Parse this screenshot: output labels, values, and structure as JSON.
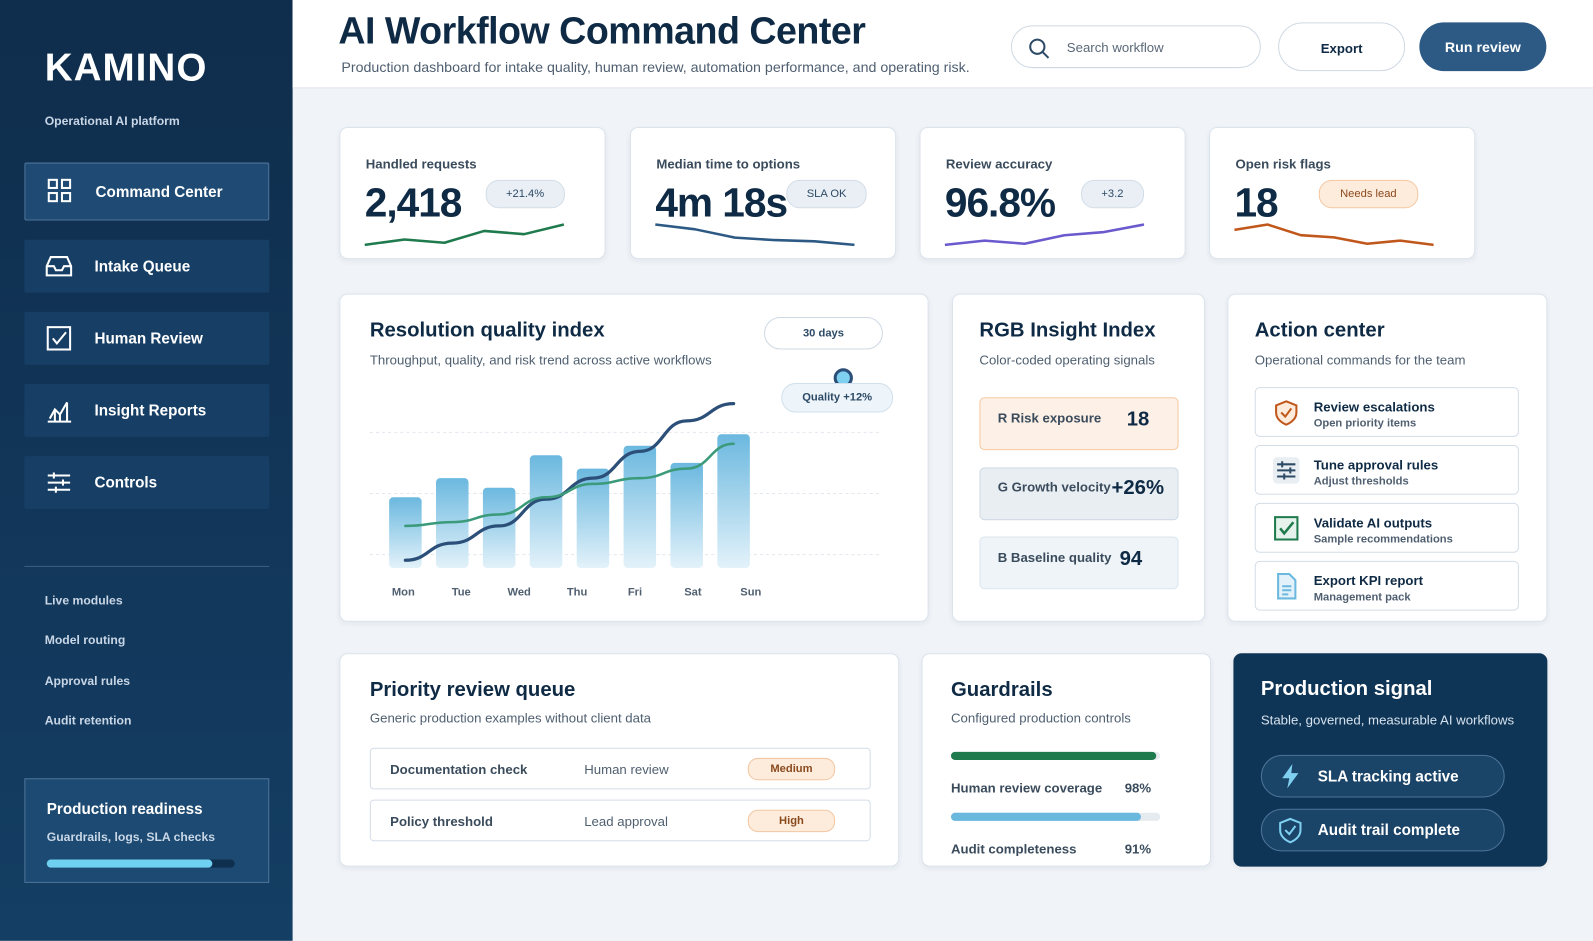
{
  "sidebar": {
    "brand": "KAMINO",
    "tagline": "Operational AI platform",
    "nav": [
      "Command Center",
      "Intake Queue",
      "Human Review",
      "Insight Reports",
      "Controls"
    ],
    "links": [
      "Live modules",
      "Model routing",
      "Approval rules",
      "Audit retention"
    ],
    "readiness": {
      "title": "Production readiness",
      "subtitle": "Guardrails, logs, SLA checks",
      "progress": 88
    }
  },
  "header": {
    "title": "AI Workflow Command Center",
    "subtitle": "Production dashboard for intake quality, human review, automation performance, and operating risk.",
    "search_placeholder": "Search workflow",
    "buttons": [
      "Export",
      "Run review"
    ]
  },
  "kpis": [
    {
      "label": "Handled requests",
      "value": "2,418",
      "badge": "+21.4%",
      "color": "#1f7a4d",
      "trend": [
        0,
        5,
        2,
        13,
        10,
        19
      ]
    },
    {
      "label": "Median time to options",
      "value": "4m 18s",
      "badge": "SLA OK",
      "color": "#2d5a85",
      "trend": [
        20,
        16,
        9,
        7,
        6,
        3
      ]
    },
    {
      "label": "Review accuracy",
      "value": "96.8%",
      "badge": "+3.2",
      "color": "#6a5acd",
      "trend": [
        0,
        4,
        1,
        9,
        12,
        19
      ]
    },
    {
      "label": "Open risk flags",
      "value": "18",
      "badge": "Needs lead",
      "color": "#c0571b",
      "trend": [
        14,
        19,
        9,
        7,
        1,
        4,
        0
      ]
    }
  ],
  "chart_data": {
    "type": "bar",
    "title": "Resolution quality index",
    "subtitle": "Throughput, quality, and risk trend across active workflows",
    "range_pill": "30 days",
    "annotation": "Quality +12%",
    "categories": [
      "Mon",
      "Tue",
      "Wed",
      "Thu",
      "Fri",
      "Sat",
      "Sun",
      null
    ],
    "values": [
      37,
      47,
      42,
      59,
      52,
      64,
      55,
      70
    ],
    "color": "#6bb8df",
    "lines": [
      {
        "color": "#2b4f78",
        "values": [
          4,
          13,
          22,
          36,
          47,
          61,
          77,
          86
        ]
      },
      {
        "color": "#3a9a7a",
        "values": [
          22,
          24,
          28,
          37,
          44,
          47,
          52,
          65
        ]
      }
    ],
    "ylim": [
      0,
      100
    ],
    "gridlines": [
      7,
      39,
      71
    ],
    "grid": true
  },
  "rgb": {
    "title": "RGB Insight Index",
    "subtitle": "Color-coded operating signals",
    "items": [
      {
        "label": "R Risk exposure",
        "value": "18"
      },
      {
        "label": "G Growth velocity",
        "value": "+26%"
      },
      {
        "label": "B Baseline quality",
        "value": "94"
      }
    ]
  },
  "actions": {
    "title": "Action center",
    "subtitle": "Operational commands for the team",
    "items": [
      {
        "title": "Review escalations",
        "subtitle": "Open priority items"
      },
      {
        "title": "Tune approval rules",
        "subtitle": "Adjust thresholds"
      },
      {
        "title": "Validate AI outputs",
        "subtitle": "Sample recommendations"
      },
      {
        "title": "Export KPI report",
        "subtitle": "Management pack"
      }
    ]
  },
  "queue": {
    "title": "Priority review queue",
    "subtitle": "Generic production examples without client data",
    "rows": [
      [
        "Documentation check",
        "Human review",
        "Medium"
      ],
      [
        "Policy threshold",
        "Lead approval",
        "High"
      ]
    ]
  },
  "guardrails": {
    "title": "Guardrails",
    "subtitle": "Configured production controls",
    "items": [
      {
        "label": "Human review coverage",
        "value": 98,
        "value_label": "98%",
        "color": "#1f7a4d"
      },
      {
        "label": "Audit completeness",
        "value": 91,
        "value_label": "91%",
        "color": "#6bb8df"
      }
    ]
  },
  "signal": {
    "title": "Production signal",
    "subtitle": "Stable, governed, measurable AI workflows",
    "items": [
      "SLA tracking active",
      "Audit trail complete"
    ]
  }
}
